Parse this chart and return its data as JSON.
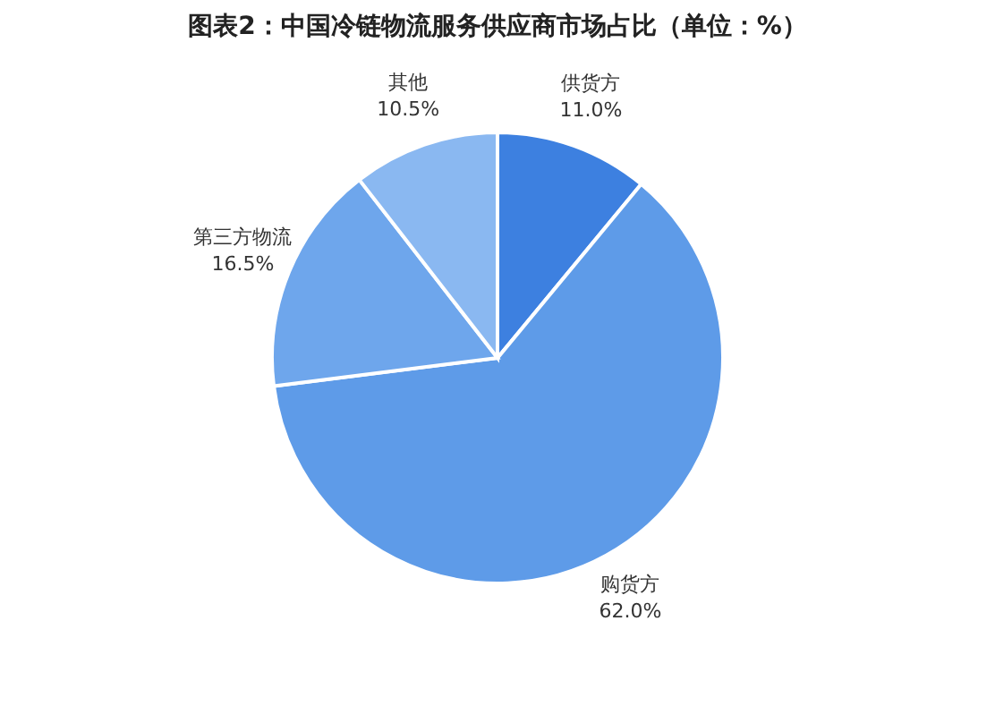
{
  "chart_data": {
    "type": "pie",
    "title": "图表2：中国冷链物流服务供应商市场占比（单位：%）",
    "categories": [
      "供货方",
      "购货方",
      "第三方物流",
      "其他"
    ],
    "values": [
      11.0,
      62.0,
      16.5,
      10.5
    ],
    "value_labels": [
      "11.0%",
      "62.0%",
      "16.5%",
      "10.5%"
    ],
    "colors": [
      "#3d80e0",
      "#5e9be8",
      "#6ea6ec",
      "#8ab8f1"
    ],
    "legend": false
  }
}
